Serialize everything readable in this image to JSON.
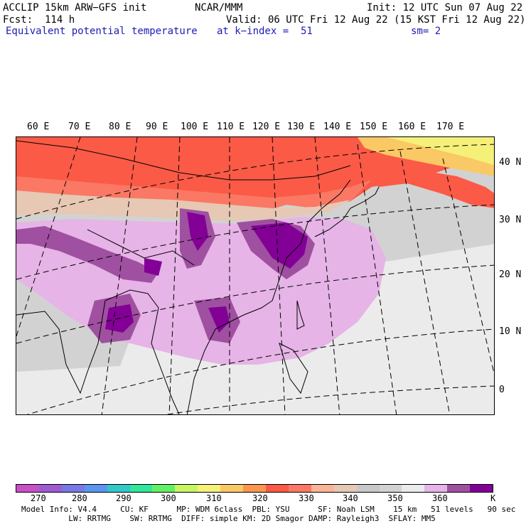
{
  "header": {
    "model": "ACCLIP 15km ARW−GFS init",
    "center": "NCAR/MMM",
    "init": "Init: 12 UTC Sun 07 Aug 22",
    "fcst": "Fcst:  114 h",
    "valid": "Valid: 06 UTC Fri 12 Aug 22 (15 KST Fri 12 Aug 22)",
    "field": "Equivalent potential temperature",
    "level": "at k−index =  51",
    "smooth": "sm= 2"
  },
  "map": {
    "lon_labels": [
      "60 E",
      "70 E",
      "80 E",
      "90 E",
      "100 E",
      "110 E",
      "120 E",
      "130 E",
      "140 E",
      "150 E",
      "160 E",
      "170 E"
    ],
    "lat_labels": [
      "40 N",
      "30 N",
      "20 N",
      "10 N",
      "0"
    ]
  },
  "colorbar": {
    "unit": "K",
    "tick_labels": [
      "270",
      "280",
      "290",
      "300",
      "310",
      "320",
      "330",
      "340",
      "350",
      "360"
    ],
    "colors": [
      "#c850c8",
      "#a05ad2",
      "#7878e6",
      "#5a96f0",
      "#32c8c8",
      "#32e69b",
      "#64f064",
      "#c8f564",
      "#f5f078",
      "#fac864",
      "#fa9650",
      "#fa5a46",
      "#fa7864",
      "#fab496",
      "#e6c8b4",
      "#c8c8c8",
      "#d2d2d2",
      "#ebebeb",
      "#e6b4e6",
      "#a050a0",
      "#820096"
    ]
  },
  "footer": {
    "line1": "Model Info: V4.4     CU: KF      MP: WDM 6class  PBL: YSU      SF: Noah LSM    15 km   51 levels   90 sec",
    "line2": "          LW: RRTMG    SW: RRTMG  DIFF: simple KM: 2D Smagor DAMP: Rayleigh3  SFLAY: MM5"
  }
}
